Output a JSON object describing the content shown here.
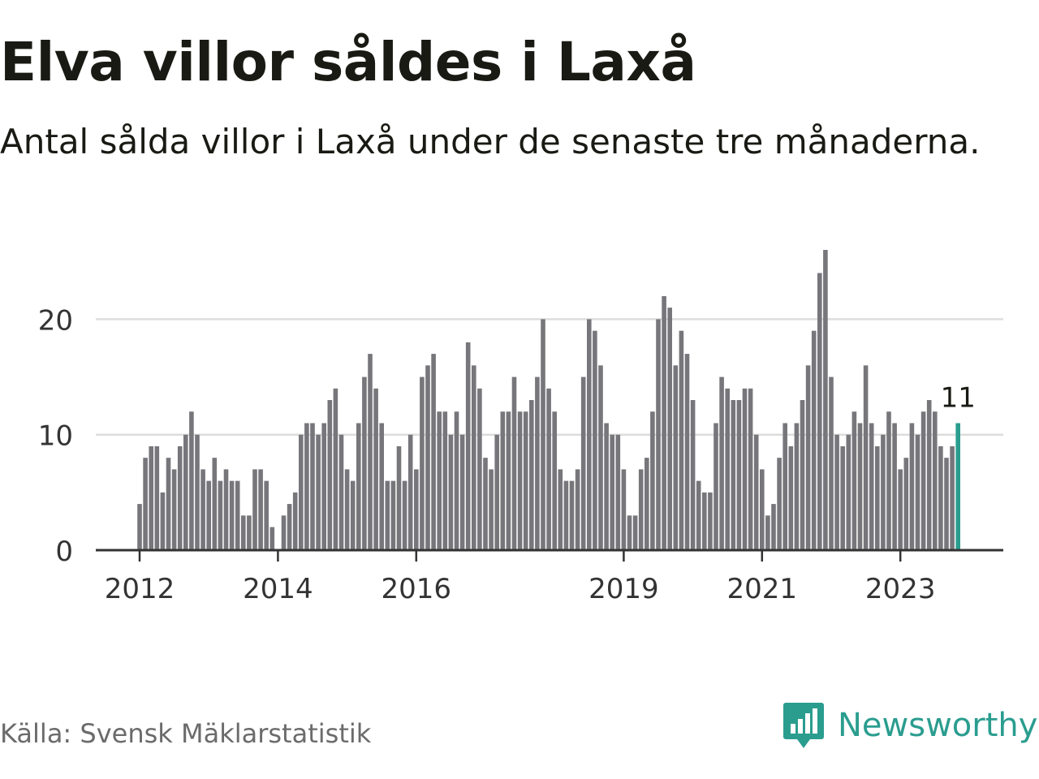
{
  "header": {
    "title": "Elva villor såldes i Laxå",
    "subtitle": "Antal sålda villor i Laxå under de senaste tre månaderna."
  },
  "footer": {
    "source": "Källa: Svensk Mäklarstatistik",
    "brand": "Newsworthy",
    "brand_icon": "newsworthy-chart-badge-icon"
  },
  "colors": {
    "bar": "#77767b",
    "highlight": "#2a9d8f",
    "grid": "#dddddd",
    "axis": "#333333",
    "text": "#333333"
  },
  "chart_data": {
    "type": "bar",
    "title": "Elva villor såldes i Laxå",
    "subtitle": "Antal sålda villor i Laxå under de senaste tre månaderna.",
    "xlabel": "",
    "ylabel": "",
    "ylim": [
      0,
      26
    ],
    "yticks": [
      0,
      10,
      20
    ],
    "grid": true,
    "x_tick_labels": [
      "2012",
      "2014",
      "2016",
      "2019",
      "2021",
      "2023"
    ],
    "x_tick_months": [
      0,
      24,
      48,
      84,
      108,
      132
    ],
    "x_start": "2012-01",
    "highlight_index": 142,
    "highlight_label": "11",
    "values": [
      4,
      8,
      9,
      9,
      5,
      8,
      7,
      9,
      10,
      12,
      10,
      7,
      6,
      8,
      6,
      7,
      6,
      6,
      3,
      3,
      7,
      7,
      6,
      2,
      0,
      3,
      4,
      5,
      10,
      11,
      11,
      10,
      11,
      13,
      14,
      10,
      7,
      6,
      11,
      15,
      17,
      14,
      11,
      6,
      6,
      9,
      6,
      10,
      7,
      15,
      16,
      17,
      12,
      12,
      10,
      12,
      10,
      18,
      16,
      14,
      8,
      7,
      10,
      12,
      12,
      15,
      12,
      12,
      13,
      15,
      20,
      14,
      12,
      7,
      6,
      6,
      7,
      15,
      20,
      19,
      16,
      11,
      10,
      10,
      7,
      3,
      3,
      7,
      8,
      12,
      20,
      22,
      21,
      16,
      19,
      17,
      13,
      6,
      5,
      5,
      11,
      15,
      14,
      13,
      13,
      14,
      14,
      10,
      7,
      3,
      4,
      8,
      11,
      9,
      11,
      13,
      16,
      19,
      24,
      26,
      15,
      10,
      9,
      10,
      12,
      11,
      16,
      11,
      9,
      10,
      12,
      11,
      7,
      8,
      11,
      10,
      12,
      13,
      12,
      9,
      8,
      9,
      11
    ]
  }
}
